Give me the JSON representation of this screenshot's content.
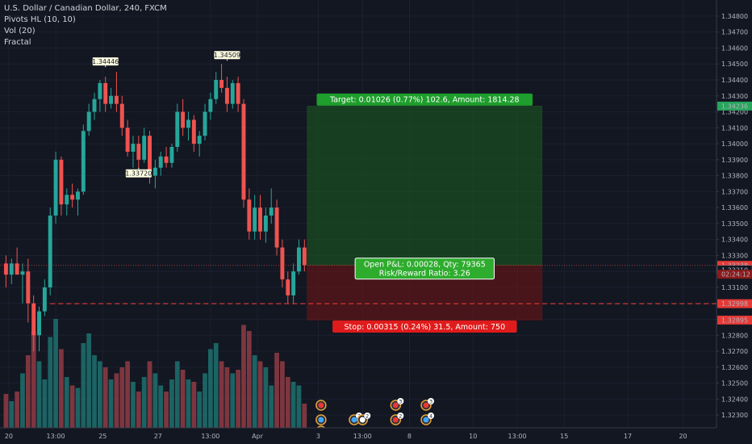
{
  "legend": {
    "symbol": "U.S. Dollar / Canadian Dollar, 240, FXCM",
    "ind1": "Pivots HL (10, 10)",
    "ind2": "Vol (20)",
    "ind3": "Fractal"
  },
  "colors": {
    "bull": "#26a69a",
    "bear": "#ef5350",
    "vol_bull": "#1e6b6a",
    "vol_bear": "#8a3a43",
    "target_zone": "#1b5e20",
    "stop_zone": "#6b1515",
    "target_label": "#1e9e2c",
    "stop_label": "#e01b1b",
    "pnl_label": "#2eac2e"
  },
  "chart_data": {
    "type": "candlestick",
    "y_axis": {
      "range": [
        1.3223,
        1.3484
      ],
      "ticks": [
        "1.32300",
        "1.32400",
        "1.32500",
        "1.32600",
        "1.32700",
        "1.32800",
        "1.32900",
        "1.33000",
        "1.33100",
        "1.33200",
        "1.33300",
        "1.33400",
        "1.33500",
        "1.33600",
        "1.33700",
        "1.33800",
        "1.33900",
        "1.34000",
        "1.34100",
        "1.34200",
        "1.34300",
        "1.34400",
        "1.34500",
        "1.34600",
        "1.34700",
        "1.34800"
      ]
    },
    "x_axis": {
      "ticks": [
        {
          "i": 0.5,
          "label": "20"
        },
        {
          "i": 9,
          "label": "13:00"
        },
        {
          "i": 17.5,
          "label": "25"
        },
        {
          "i": 27.5,
          "label": "27"
        },
        {
          "i": 37,
          "label": "13:00"
        },
        {
          "i": 45.5,
          "label": "Apr"
        },
        {
          "i": 56.5,
          "label": "3"
        },
        {
          "i": 64.5,
          "label": "13:00"
        },
        {
          "i": 73,
          "label": "8"
        },
        {
          "i": 84.5,
          "label": "10"
        },
        {
          "i": 92.5,
          "label": "13:00"
        },
        {
          "i": 101,
          "label": "15"
        },
        {
          "i": 112.5,
          "label": "17"
        },
        {
          "i": 122.5,
          "label": "20"
        }
      ]
    },
    "candles": [
      {
        "o": 1.3325,
        "h": 1.333,
        "l": 1.331,
        "c": 1.3318,
        "v": 0.28
      },
      {
        "o": 1.3318,
        "h": 1.3328,
        "l": 1.3312,
        "c": 1.3325,
        "v": 0.22
      },
      {
        "o": 1.3325,
        "h": 1.3335,
        "l": 1.332,
        "c": 1.3318,
        "v": 0.3
      },
      {
        "o": 1.3318,
        "h": 1.3325,
        "l": 1.33,
        "c": 1.332,
        "v": 0.45
      },
      {
        "o": 1.332,
        "h": 1.3328,
        "l": 1.3288,
        "c": 1.33,
        "v": 0.6
      },
      {
        "o": 1.33,
        "h": 1.3305,
        "l": 1.327,
        "c": 1.328,
        "v": 0.8
      },
      {
        "o": 1.328,
        "h": 1.3298,
        "l": 1.327,
        "c": 1.3295,
        "v": 0.55
      },
      {
        "o": 1.3295,
        "h": 1.3315,
        "l": 1.3292,
        "c": 1.331,
        "v": 0.4
      },
      {
        "o": 1.331,
        "h": 1.336,
        "l": 1.3305,
        "c": 1.3355,
        "v": 0.75
      },
      {
        "o": 1.3355,
        "h": 1.3395,
        "l": 1.335,
        "c": 1.339,
        "v": 0.9
      },
      {
        "o": 1.339,
        "h": 1.3392,
        "l": 1.3355,
        "c": 1.3362,
        "v": 0.65
      },
      {
        "o": 1.3362,
        "h": 1.3372,
        "l": 1.3355,
        "c": 1.3368,
        "v": 0.42
      },
      {
        "o": 1.3368,
        "h": 1.3375,
        "l": 1.336,
        "c": 1.3365,
        "v": 0.35
      },
      {
        "o": 1.3365,
        "h": 1.3372,
        "l": 1.3355,
        "c": 1.337,
        "v": 0.33
      },
      {
        "o": 1.337,
        "h": 1.3412,
        "l": 1.3368,
        "c": 1.3408,
        "v": 0.7
      },
      {
        "o": 1.3408,
        "h": 1.3425,
        "l": 1.3405,
        "c": 1.342,
        "v": 0.78
      },
      {
        "o": 1.342,
        "h": 1.3432,
        "l": 1.3415,
        "c": 1.3428,
        "v": 0.6
      },
      {
        "o": 1.3428,
        "h": 1.344,
        "l": 1.342,
        "c": 1.3438,
        "v": 0.55
      },
      {
        "o": 1.3438,
        "h": 1.3442,
        "l": 1.342,
        "c": 1.3425,
        "v": 0.5
      },
      {
        "o": 1.3425,
        "h": 1.3435,
        "l": 1.3422,
        "c": 1.343,
        "v": 0.4
      },
      {
        "o": 1.343,
        "h": 1.3445,
        "l": 1.342,
        "c": 1.3425,
        "v": 0.45
      },
      {
        "o": 1.3425,
        "h": 1.343,
        "l": 1.3405,
        "c": 1.341,
        "v": 0.5
      },
      {
        "o": 1.341,
        "h": 1.3415,
        "l": 1.3392,
        "c": 1.3395,
        "v": 0.55
      },
      {
        "o": 1.3395,
        "h": 1.3405,
        "l": 1.3385,
        "c": 1.34,
        "v": 0.38
      },
      {
        "o": 1.34,
        "h": 1.3405,
        "l": 1.3385,
        "c": 1.339,
        "v": 0.3
      },
      {
        "o": 1.339,
        "h": 1.341,
        "l": 1.3388,
        "c": 1.3405,
        "v": 0.42
      },
      {
        "o": 1.3405,
        "h": 1.3408,
        "l": 1.3375,
        "c": 1.338,
        "v": 0.55
      },
      {
        "o": 1.338,
        "h": 1.339,
        "l": 1.3372,
        "c": 1.3385,
        "v": 0.45
      },
      {
        "o": 1.3385,
        "h": 1.3395,
        "l": 1.338,
        "c": 1.3392,
        "v": 0.35
      },
      {
        "o": 1.3392,
        "h": 1.3398,
        "l": 1.3385,
        "c": 1.3388,
        "v": 0.3
      },
      {
        "o": 1.3388,
        "h": 1.34,
        "l": 1.3385,
        "c": 1.3398,
        "v": 0.4
      },
      {
        "o": 1.3398,
        "h": 1.3425,
        "l": 1.3395,
        "c": 1.342,
        "v": 0.55
      },
      {
        "o": 1.342,
        "h": 1.3428,
        "l": 1.3405,
        "c": 1.341,
        "v": 0.48
      },
      {
        "o": 1.341,
        "h": 1.342,
        "l": 1.3402,
        "c": 1.3415,
        "v": 0.4
      },
      {
        "o": 1.3415,
        "h": 1.3418,
        "l": 1.3395,
        "c": 1.34,
        "v": 0.38
      },
      {
        "o": 1.34,
        "h": 1.3408,
        "l": 1.3392,
        "c": 1.3405,
        "v": 0.3
      },
      {
        "o": 1.3405,
        "h": 1.3425,
        "l": 1.3402,
        "c": 1.342,
        "v": 0.45
      },
      {
        "o": 1.342,
        "h": 1.3432,
        "l": 1.3415,
        "c": 1.3428,
        "v": 0.65
      },
      {
        "o": 1.3428,
        "h": 1.3445,
        "l": 1.3425,
        "c": 1.344,
        "v": 0.7
      },
      {
        "o": 1.344,
        "h": 1.345,
        "l": 1.3432,
        "c": 1.3435,
        "v": 0.55
      },
      {
        "o": 1.3435,
        "h": 1.3442,
        "l": 1.342,
        "c": 1.3425,
        "v": 0.5
      },
      {
        "o": 1.3425,
        "h": 1.344,
        "l": 1.3422,
        "c": 1.3438,
        "v": 0.45
      },
      {
        "o": 1.3438,
        "h": 1.3442,
        "l": 1.342,
        "c": 1.3425,
        "v": 0.48
      },
      {
        "o": 1.3425,
        "h": 1.3428,
        "l": 1.336,
        "c": 1.3365,
        "v": 0.85
      },
      {
        "o": 1.3365,
        "h": 1.3372,
        "l": 1.334,
        "c": 1.3345,
        "v": 0.8
      },
      {
        "o": 1.3345,
        "h": 1.3368,
        "l": 1.334,
        "c": 1.336,
        "v": 0.6
      },
      {
        "o": 1.336,
        "h": 1.3368,
        "l": 1.334,
        "c": 1.3345,
        "v": 0.55
      },
      {
        "o": 1.3345,
        "h": 1.336,
        "l": 1.3338,
        "c": 1.3355,
        "v": 0.5
      },
      {
        "o": 1.3355,
        "h": 1.3372,
        "l": 1.335,
        "c": 1.336,
        "v": 0.35
      },
      {
        "o": 1.336,
        "h": 1.3365,
        "l": 1.333,
        "c": 1.3335,
        "v": 0.62
      },
      {
        "o": 1.3335,
        "h": 1.334,
        "l": 1.331,
        "c": 1.3315,
        "v": 0.55
      },
      {
        "o": 1.3315,
        "h": 1.332,
        "l": 1.33,
        "c": 1.3305,
        "v": 0.42
      },
      {
        "o": 1.3305,
        "h": 1.3325,
        "l": 1.33,
        "c": 1.332,
        "v": 0.38
      },
      {
        "o": 1.332,
        "h": 1.334,
        "l": 1.3318,
        "c": 1.3335,
        "v": 0.35
      },
      {
        "o": 1.3335,
        "h": 1.334,
        "l": 1.332,
        "c": 1.3324,
        "v": 0.2
      }
    ],
    "pivot_labels": [
      {
        "i": 18,
        "y": 1.3448,
        "text": "1.34446",
        "pos": "above"
      },
      {
        "i": 40,
        "y": 1.3452,
        "text": "1.34509",
        "pos": "above"
      },
      {
        "i": 24,
        "y": 1.3385,
        "text": "1.33720",
        "pos": "below"
      }
    ],
    "position": {
      "entry": 1.33238,
      "target": 1.34236,
      "stop": 1.32895,
      "current": 1.3321,
      "dashed": 1.32998,
      "start_i": 54.5,
      "end_i": 97,
      "target_text": "Target: 0.01026 (0.77%) 102.6, Amount: 1814.28",
      "stop_text": "Stop: 0.00315 (0.24%) 31.5, Amount: 750",
      "pnl_text": "Open P&L: 0.00028, Qty: 79365",
      "rr_text": "Risk/Reward Ratio: 3.26"
    },
    "price_tags": [
      {
        "y": 1.34236,
        "text": "1.34236",
        "kind": "target"
      },
      {
        "y": 1.33238,
        "text": "1.33238",
        "kind": "entry"
      },
      {
        "y": 1.3321,
        "text": "1.33210",
        "kind": "current"
      },
      {
        "y": 1.32998,
        "text": "1.32998",
        "kind": "stop"
      },
      {
        "y": 1.32895,
        "text": "1.32895",
        "kind": "stop"
      }
    ],
    "countdown": "02:24:12",
    "event_counts": [
      "2",
      "2",
      "3",
      "2",
      "3",
      "4"
    ]
  }
}
